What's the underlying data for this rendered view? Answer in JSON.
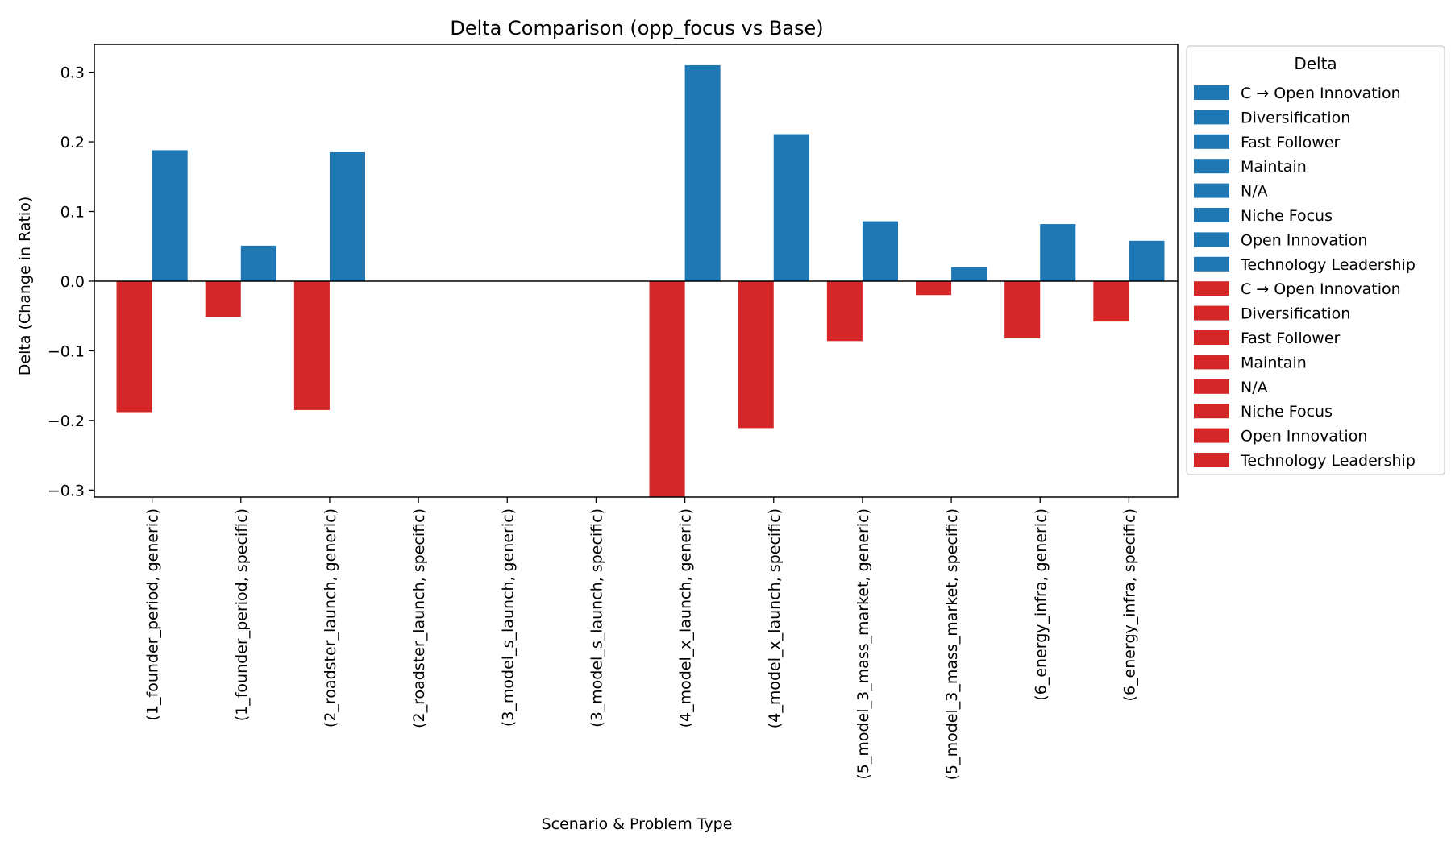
{
  "chart_data": {
    "type": "bar",
    "title": "Delta Comparison (opp_focus vs Base)",
    "xlabel": "Scenario & Problem Type",
    "ylabel": "Delta (Change in Ratio)",
    "ylim": [
      -0.31,
      0.34
    ],
    "yticks": [
      -0.3,
      -0.2,
      -0.1,
      0.0,
      0.1,
      0.2,
      0.3
    ],
    "ytick_labels": [
      "−0.3",
      "−0.2",
      "−0.1",
      "0.0",
      "0.1",
      "0.2",
      "0.3"
    ],
    "categories": [
      "(1_founder_period, generic)",
      "(1_founder_period, specific)",
      "(2_roadster_launch, generic)",
      "(2_roadster_launch, specific)",
      "(3_model_s_launch, generic)",
      "(3_model_s_launch, specific)",
      "(4_model_x_launch, generic)",
      "(4_model_x_launch, specific)",
      "(5_model_3_mass_market, generic)",
      "(5_model_3_mass_market, specific)",
      "(6_energy_infra, generic)",
      "(6_energy_infra, specific)"
    ],
    "series": [
      {
        "name": "C → Open Innovation",
        "color": "#1f77b4",
        "values": [
          0,
          0,
          0,
          0,
          0,
          0,
          0,
          0,
          0,
          0,
          0,
          0
        ]
      },
      {
        "name": "Diversification",
        "color": "#1f77b4",
        "values": [
          0,
          0,
          0,
          0,
          0,
          0,
          0,
          0,
          0,
          0,
          0,
          0
        ]
      },
      {
        "name": "Fast Follower",
        "color": "#1f77b4",
        "values": [
          0,
          0,
          0,
          0,
          0,
          0,
          0,
          0,
          0,
          0,
          0,
          0
        ]
      },
      {
        "name": "Maintain",
        "color": "#1f77b4",
        "values": [
          0,
          0,
          0,
          0,
          0,
          0,
          0,
          0,
          0,
          0,
          0,
          0
        ]
      },
      {
        "name": "N/A",
        "color": "#1f77b4",
        "values": [
          0,
          0,
          0,
          0,
          0,
          0,
          0,
          0,
          0,
          0,
          0,
          0
        ]
      },
      {
        "name": "Niche Focus",
        "color": "#1f77b4",
        "values": [
          0,
          0,
          0,
          0,
          0,
          0,
          0,
          0,
          0,
          0,
          0,
          0
        ]
      },
      {
        "name": "Open Innovation",
        "color": "#1f77b4",
        "values": [
          0,
          0,
          0,
          0,
          0,
          0,
          0,
          0,
          0,
          0,
          0,
          0
        ]
      },
      {
        "name": "Technology Leadership",
        "color": "#1f77b4",
        "values": [
          0.188,
          0.051,
          0.185,
          0,
          0,
          0,
          0.31,
          0.211,
          0.086,
          0.02,
          0.082,
          0.058
        ]
      },
      {
        "name": "C → Open Innovation",
        "color": "#d62728",
        "values": [
          0,
          0,
          0,
          0,
          0,
          0,
          0,
          0,
          0,
          0,
          0,
          0
        ]
      },
      {
        "name": "Diversification",
        "color": "#d62728",
        "values": [
          0,
          0,
          0,
          0,
          0,
          0,
          0,
          0,
          0,
          0,
          0,
          0
        ]
      },
      {
        "name": "Fast Follower",
        "color": "#d62728",
        "values": [
          0,
          0,
          0,
          0,
          0,
          0,
          0,
          0,
          0,
          0,
          0,
          0
        ]
      },
      {
        "name": "Maintain",
        "color": "#d62728",
        "values": [
          0,
          0,
          0,
          0,
          0,
          0,
          0,
          0,
          0,
          0,
          0,
          0
        ]
      },
      {
        "name": "N/A",
        "color": "#d62728",
        "values": [
          0,
          0,
          0,
          0,
          0,
          0,
          0,
          0,
          0,
          0,
          0,
          0
        ]
      },
      {
        "name": "Niche Focus",
        "color": "#d62728",
        "values": [
          0,
          0,
          0,
          0,
          0,
          0,
          0,
          0,
          0,
          0,
          0,
          0
        ]
      },
      {
        "name": "Open Innovation",
        "color": "#d62728",
        "values": [
          0,
          0,
          0,
          0,
          0,
          0,
          0,
          0,
          0,
          0,
          0,
          0
        ]
      },
      {
        "name": "Technology Leadership",
        "color": "#d62728",
        "values": [
          -0.188,
          -0.051,
          -0.185,
          0,
          0,
          0,
          -0.31,
          -0.211,
          -0.086,
          -0.02,
          -0.082,
          -0.058
        ]
      }
    ],
    "legend": {
      "title": "Delta",
      "placement": "outside right, top"
    },
    "grid": false
  }
}
